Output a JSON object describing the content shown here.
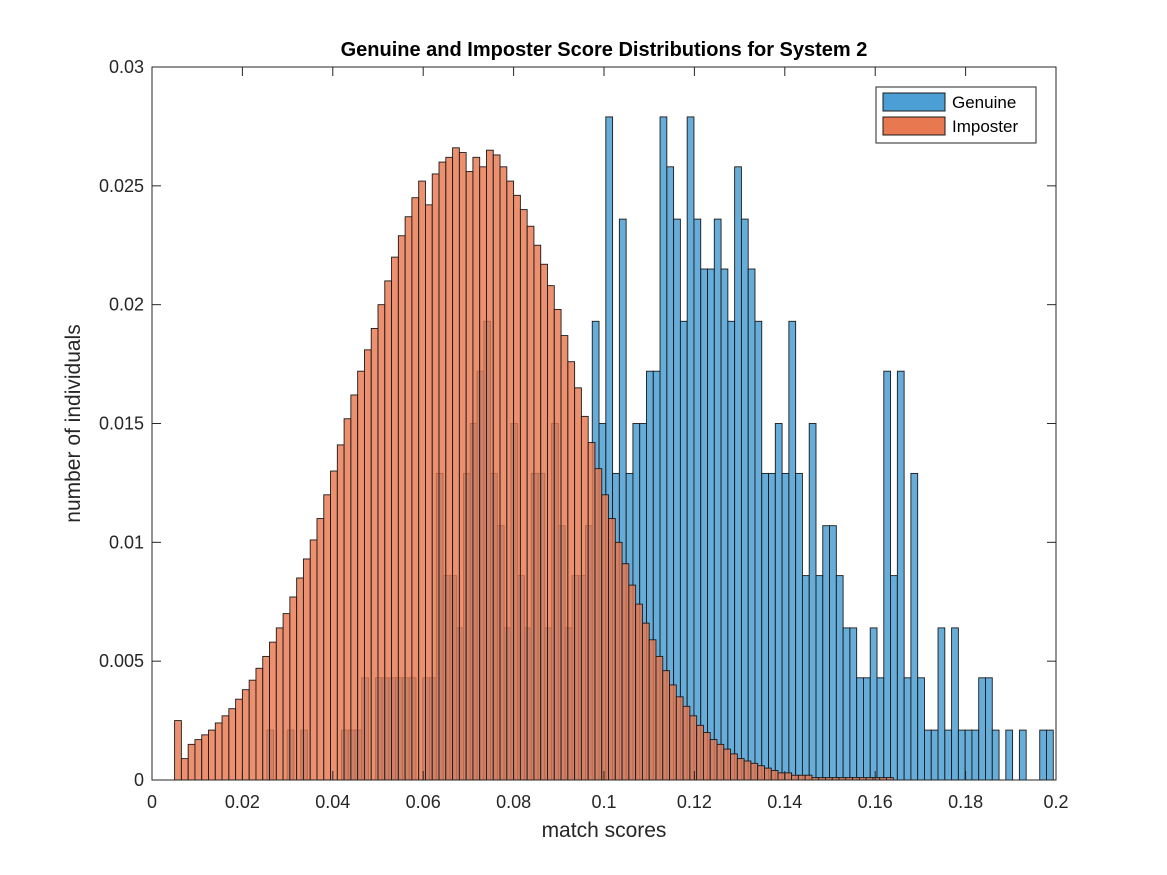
{
  "chart_data": {
    "type": "bar",
    "subtype": "overlaid-histogram",
    "title": "Genuine and Imposter Score Distributions for System 2",
    "xlabel": "match scores",
    "ylabel": "number of individuals",
    "xlim": [
      0,
      0.2
    ],
    "ylim": [
      0,
      0.03
    ],
    "xticks": [
      0,
      0.02,
      0.04,
      0.06,
      0.08,
      0.1,
      0.12,
      0.14,
      0.16,
      0.18,
      0.2
    ],
    "xtick_labels": [
      "0",
      "0.02",
      "0.04",
      "0.06",
      "0.08",
      "0.1",
      "0.12",
      "0.14",
      "0.16",
      "0.18",
      "0.2"
    ],
    "yticks": [
      0,
      0.005,
      0.01,
      0.015,
      0.02,
      0.025,
      0.03
    ],
    "ytick_labels": [
      "0",
      "0.005",
      "0.01",
      "0.015",
      "0.02",
      "0.025",
      "0.03"
    ],
    "grid": false,
    "legend_position": "top-right",
    "bin_width": 0.0015,
    "series": [
      {
        "name": "Genuine",
        "color": "#4C9FD4",
        "opacity": 0.85,
        "bin_start": 0.0254,
        "values": [
          0.0021,
          0,
          0,
          0.0021,
          0,
          0.0021,
          0,
          0,
          0,
          0,
          0,
          0.0021,
          0.0021,
          0.0021,
          0.0043,
          0,
          0.0043,
          0.0043,
          0.0043,
          0.0043,
          0.0043,
          0.0043,
          0,
          0.0043,
          0.0043,
          0.0129,
          0.0086,
          0.0086,
          0.0064,
          0.0129,
          0.015,
          0.0172,
          0.0193,
          0.0129,
          0.0107,
          0.0064,
          0.015,
          0.0086,
          0.0064,
          0.0129,
          0.0129,
          0.0064,
          0.015,
          0.0107,
          0.0064,
          0.0086,
          0.0086,
          0.0107,
          0.0193,
          0.015,
          0.0279,
          0.0129,
          0.0236,
          0.0129,
          0.015,
          0.015,
          0.0172,
          0.0172,
          0.0279,
          0.0258,
          0.0236,
          0.0193,
          0.0279,
          0.0236,
          0.0215,
          0.0215,
          0.0236,
          0.0215,
          0.0193,
          0.0258,
          0.0236,
          0.0215,
          0.0193,
          0.0129,
          0.0129,
          0.015,
          0.0129,
          0.0193,
          0.0129,
          0.0086,
          0.015,
          0.0086,
          0.0107,
          0.0107,
          0.0086,
          0.0064,
          0.0064,
          0.0043,
          0.0043,
          0.0064,
          0.0043,
          0.0172,
          0.0086,
          0.0172,
          0.0043,
          0.0129,
          0.0043,
          0.0021,
          0.0021,
          0.0064,
          0.0021,
          0.0064,
          0.0021,
          0.0021,
          0.0021,
          0.0043,
          0.0043,
          0.0021,
          0,
          0.0021,
          0,
          0.0021,
          0,
          0,
          0.0021,
          0.0021,
          0,
          0.0021
        ]
      },
      {
        "name": "Imposter",
        "color": "#E8784F",
        "opacity": 0.82,
        "bin_start": 0.005,
        "values": [
          0.0025,
          0.0009,
          0.0015,
          0.0017,
          0.0019,
          0.0021,
          0.0024,
          0.0027,
          0.003,
          0.0034,
          0.0038,
          0.0042,
          0.0047,
          0.0052,
          0.0058,
          0.0064,
          0.007,
          0.0077,
          0.0085,
          0.0093,
          0.0101,
          0.011,
          0.012,
          0.013,
          0.0141,
          0.0152,
          0.0162,
          0.0172,
          0.0181,
          0.019,
          0.02,
          0.021,
          0.022,
          0.0229,
          0.0237,
          0.0245,
          0.0252,
          0.0242,
          0.0255,
          0.026,
          0.0262,
          0.0266,
          0.0264,
          0.0256,
          0.0262,
          0.0258,
          0.0265,
          0.0263,
          0.0258,
          0.0252,
          0.0246,
          0.024,
          0.0233,
          0.0225,
          0.0217,
          0.0208,
          0.0198,
          0.0187,
          0.0176,
          0.0165,
          0.0153,
          0.0142,
          0.0131,
          0.012,
          0.011,
          0.01,
          0.0091,
          0.0082,
          0.0074,
          0.0066,
          0.0059,
          0.0052,
          0.0046,
          0.004,
          0.0035,
          0.0031,
          0.0027,
          0.0023,
          0.002,
          0.0017,
          0.0015,
          0.0013,
          0.0011,
          0.0009,
          0.0008,
          0.0007,
          0.0006,
          0.0005,
          0.0004,
          0.0003,
          0.0003,
          0.0002,
          0.0002,
          0.0002,
          0.0001,
          0.0001,
          0.0001,
          0.0001,
          0.0001,
          0.0001,
          0.0001,
          0.0001,
          0.0001,
          0.0001,
          0.0001,
          0.0001
        ]
      }
    ]
  }
}
